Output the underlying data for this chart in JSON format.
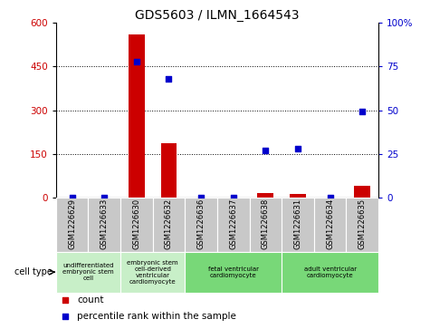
{
  "title": "GDS5603 / ILMN_1664543",
  "samples": [
    "GSM1226629",
    "GSM1226633",
    "GSM1226630",
    "GSM1226632",
    "GSM1226636",
    "GSM1226637",
    "GSM1226638",
    "GSM1226631",
    "GSM1226634",
    "GSM1226635"
  ],
  "counts": [
    0,
    0,
    560,
    185,
    0,
    0,
    15,
    12,
    0,
    40
  ],
  "percentiles": [
    0,
    0,
    78,
    68,
    0,
    0,
    27,
    28,
    0,
    49
  ],
  "ylim_left": [
    0,
    600
  ],
  "ylim_right": [
    0,
    100
  ],
  "yticks_left": [
    0,
    150,
    300,
    450,
    600
  ],
  "yticks_right": [
    0,
    25,
    50,
    75,
    100
  ],
  "cell_types": [
    {
      "label": "undifferentiated\nembryonic stem\ncell",
      "start": 0,
      "end": 2,
      "color": "#c8efc8"
    },
    {
      "label": "embryonic stem\ncell-derived\nventricular\ncardiomyocyte",
      "start": 2,
      "end": 4,
      "color": "#c8efc8"
    },
    {
      "label": "fetal ventricular\ncardiomyocyte",
      "start": 4,
      "end": 7,
      "color": "#78d878"
    },
    {
      "label": "adult ventricular\ncardiomyocyte",
      "start": 7,
      "end": 10,
      "color": "#78d878"
    }
  ],
  "bar_color": "#cc0000",
  "dot_color": "#0000cc",
  "grid_color": "#000000",
  "bg_color": "#ffffff",
  "sample_bg_color": "#c8c8c8",
  "left_axis_color": "#cc0000",
  "right_axis_color": "#0000cc"
}
